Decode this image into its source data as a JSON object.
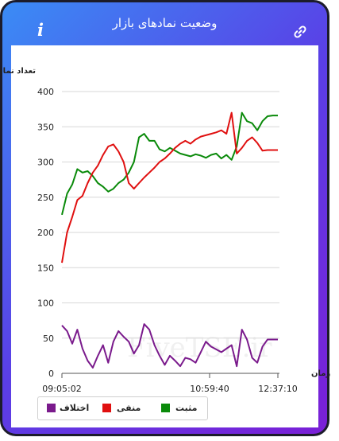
{
  "header": {
    "title": "وضعیت نمادهای بازار",
    "info_icon": "info-icon",
    "link_icon": "link-icon",
    "gradient_start": "#3a8cf5",
    "gradient_end": "#7a1fd6"
  },
  "watermark": "FiveTSE.ir",
  "chart_data": {
    "type": "line",
    "ylabel": "تعداد نماد",
    "xlabel": "زمان",
    "ylim": [
      0,
      400
    ],
    "yticks": [
      "0",
      "50",
      "100",
      "150",
      "200",
      "250",
      "300",
      "350",
      "400"
    ],
    "xticks": [
      "09:05:02",
      "10:59:40",
      "12:37:10"
    ],
    "grid": "horizontal",
    "legend_position": "bottom-left",
    "x": [
      "09:05",
      "09:10",
      "09:15",
      "09:20",
      "09:25",
      "09:30",
      "09:35",
      "09:40",
      "09:45",
      "09:50",
      "09:55",
      "10:00",
      "10:05",
      "10:10",
      "10:15",
      "10:20",
      "10:25",
      "10:30",
      "10:35",
      "10:40",
      "10:45",
      "10:50",
      "10:55",
      "11:00",
      "11:05",
      "11:10",
      "11:15",
      "11:20",
      "11:25",
      "11:30",
      "11:35",
      "11:40",
      "11:45",
      "11:50",
      "11:55",
      "12:00",
      "12:05",
      "12:10",
      "12:15",
      "12:20",
      "12:25",
      "12:30",
      "12:37"
    ],
    "series": [
      {
        "name": "مثبت",
        "color": "#0a8a0a",
        "values": [
          225,
          255,
          268,
          290,
          285,
          287,
          280,
          270,
          265,
          258,
          262,
          270,
          275,
          285,
          300,
          335,
          340,
          330,
          330,
          318,
          315,
          320,
          316,
          312,
          310,
          308,
          311,
          309,
          306,
          310,
          312,
          305,
          310,
          303,
          322,
          370,
          358,
          355,
          345,
          358,
          365,
          366,
          366
        ]
      },
      {
        "name": "منفی",
        "color": "#e01010",
        "values": [
          157,
          200,
          222,
          246,
          252,
          270,
          285,
          295,
          310,
          322,
          325,
          315,
          300,
          270,
          262,
          270,
          278,
          285,
          292,
          300,
          305,
          312,
          320,
          326,
          330,
          326,
          332,
          336,
          338,
          340,
          342,
          345,
          340,
          370,
          312,
          320,
          330,
          335,
          327,
          316,
          317,
          317,
          317
        ]
      },
      {
        "name": "اختلاف",
        "color": "#7a1a8c",
        "values": [
          68,
          60,
          42,
          62,
          35,
          18,
          8,
          25,
          40,
          15,
          45,
          60,
          52,
          45,
          28,
          40,
          70,
          62,
          40,
          25,
          12,
          25,
          18,
          10,
          22,
          20,
          15,
          30,
          45,
          38,
          34,
          30,
          35,
          40,
          10,
          62,
          48,
          22,
          15,
          38,
          48,
          48,
          48
        ]
      }
    ]
  }
}
